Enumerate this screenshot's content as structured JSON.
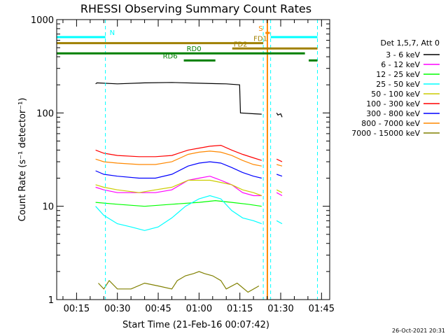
{
  "chart_data": {
    "type": "line",
    "title": "RHESSI Observing Summary Count Rates",
    "xlabel": "Start Time (21-Feb-16 00:07:42)",
    "ylabel": "Count Rate (s⁻¹ detector⁻¹)",
    "x_unit": "minutes since 00:00 UT",
    "xlim": [
      7.7,
      108
    ],
    "ylim": [
      1,
      1000
    ],
    "yscale": "log",
    "x_ticks": [
      {
        "value": 15,
        "label": "00:15"
      },
      {
        "value": 30,
        "label": "00:30"
      },
      {
        "value": 45,
        "label": "00:45"
      },
      {
        "value": 60,
        "label": "01:00"
      },
      {
        "value": 75,
        "label": "01:15"
      },
      {
        "value": 90,
        "label": "01:30"
      },
      {
        "value": 105,
        "label": "01:45"
      }
    ],
    "y_ticks": [
      {
        "value": 1,
        "label": "1"
      },
      {
        "value": 10,
        "label": "10"
      },
      {
        "value": 100,
        "label": "100"
      },
      {
        "value": 1000,
        "label": "1000"
      }
    ],
    "legend_title": "Det 1,5,7, Att 0",
    "legend_position": "right",
    "series": [
      {
        "name": "3 - 6 keV",
        "color": "#000000",
        "segments": [
          {
            "x": [
              22,
              22.5,
              30,
              40,
              50,
              60,
              66,
              70,
              74.9,
              75.2,
              80,
              83
            ],
            "y": [
              205,
              210,
              205,
              210,
              212,
              208,
              206,
              205,
              200,
              100,
              98,
              97
            ]
          },
          {
            "x": [
              88.5,
              89,
              90,
              90.5
            ],
            "y": [
              100,
              95,
              98,
              90
            ]
          }
        ]
      },
      {
        "name": "6 - 12 keV",
        "color": "#ff00ff",
        "segments": [
          {
            "x": [
              22,
              25,
              30,
              38,
              44,
              50,
              56,
              60,
              64,
              68,
              72,
              76,
              80,
              83
            ],
            "y": [
              16,
              15,
              14,
              14,
              14,
              15,
              19,
              20,
              21,
              19,
              17,
              14,
              13,
              13
            ]
          },
          {
            "x": [
              88.5,
              90.5
            ],
            "y": [
              14,
              13
            ]
          }
        ]
      },
      {
        "name": "12 - 25 keV",
        "color": "#00ff00",
        "segments": [
          {
            "x": [
              22,
              30,
              40,
              50,
              60,
              66,
              72,
              78,
              83
            ],
            "y": [
              11,
              10.5,
              10,
              10.5,
              11,
              11.5,
              11,
              10.5,
              10
            ]
          }
        ]
      },
      {
        "name": "25 - 50 keV",
        "color": "#00ffff",
        "segments": [
          {
            "x": [
              22,
              25,
              30,
              35,
              40,
              45,
              50,
              55,
              60,
              64,
              68,
              72,
              76,
              80,
              83
            ],
            "y": [
              10,
              8,
              6.5,
              6,
              5.5,
              6,
              7.5,
              10,
              12,
              13,
              12,
              9,
              7.5,
              7,
              6.5
            ]
          },
          {
            "x": [
              88.5,
              90.5
            ],
            "y": [
              7,
              6.5
            ]
          }
        ]
      },
      {
        "name": "50 - 100 keV",
        "color": "#cccc00",
        "segments": [
          {
            "x": [
              22,
              25,
              30,
              38,
              44,
              50,
              56,
              60,
              64,
              68,
              72,
              76,
              80,
              83
            ],
            "y": [
              17,
              16,
              15,
              14,
              15,
              16,
              19,
              19,
              19,
              18,
              17,
              15,
              14,
              13
            ]
          },
          {
            "x": [
              88.5,
              90.5
            ],
            "y": [
              15,
              14
            ]
          }
        ]
      },
      {
        "name": "100 - 300 keV",
        "color": "#ff0000",
        "segments": [
          {
            "x": [
              22,
              25,
              30,
              38,
              44,
              50,
              56,
              60,
              64,
              68,
              72,
              76,
              80,
              83
            ],
            "y": [
              40,
              37,
              35,
              34,
              34,
              35,
              40,
              42,
              44,
              45,
              40,
              36,
              33,
              31
            ]
          },
          {
            "x": [
              88.5,
              90.5
            ],
            "y": [
              32,
              30
            ]
          }
        ]
      },
      {
        "name": "300 - 800 keV",
        "color": "#0000ff",
        "segments": [
          {
            "x": [
              22,
              25,
              30,
              38,
              44,
              50,
              56,
              60,
              64,
              68,
              72,
              76,
              80,
              83
            ],
            "y": [
              24,
              22,
              21,
              20,
              20,
              22,
              27,
              29,
              30,
              29,
              26,
              23,
              21,
              20
            ]
          },
          {
            "x": [
              88.5,
              90.5
            ],
            "y": [
              22,
              21
            ]
          }
        ]
      },
      {
        "name": "800 - 7000 keV",
        "color": "#ff8800",
        "segments": [
          {
            "x": [
              22,
              25,
              30,
              38,
              44,
              50,
              56,
              60,
              64,
              68,
              72,
              76,
              80,
              83
            ],
            "y": [
              32,
              30,
              29,
              28,
              28,
              30,
              36,
              38,
              39,
              38,
              35,
              31,
              28,
              27
            ]
          },
          {
            "x": [
              88.5,
              90.5
            ],
            "y": [
              28,
              27
            ]
          }
        ]
      },
      {
        "name": "7000 - 15000 keV",
        "color": "#808000",
        "segments": [
          {
            "x": [
              23,
              25,
              27,
              30,
              35,
              40,
              45,
              50,
              52,
              55,
              58,
              60,
              62,
              65,
              68,
              70,
              74,
              78,
              82
            ],
            "y": [
              1.5,
              1.3,
              1.6,
              1.3,
              1.3,
              1.5,
              1.4,
              1.3,
              1.6,
              1.8,
              1.9,
              2.0,
              1.9,
              1.8,
              1.6,
              1.3,
              1.5,
              1.2,
              1.4
            ]
          }
        ]
      }
    ],
    "vertical_lines": [
      {
        "x": 25.6,
        "color": "#00ffff",
        "style": "dashed"
      },
      {
        "x": 83.6,
        "color": "#00ffff",
        "style": "dashed"
      },
      {
        "x": 85.1,
        "color": "#ff8800",
        "style": "solid"
      },
      {
        "x": 86.3,
        "color": "#00ffff",
        "style": "dashed"
      },
      {
        "x": 103.5,
        "color": "#00ffff",
        "style": "dashed"
      }
    ],
    "annotation_bars": [
      {
        "label": "N",
        "color": "#00ffff",
        "row_y": 650,
        "segments": [
          [
            7.7,
            25.6
          ],
          [
            86.3,
            103.5
          ]
        ]
      },
      {
        "label": "S",
        "color": "#ff8800",
        "row_y": 720,
        "segments": [
          [
            84.4,
            86.0
          ]
        ]
      },
      {
        "label": "FD1",
        "color": "#a08000",
        "row_y": 560,
        "segments": [
          [
            7.7,
            83.6
          ]
        ]
      },
      {
        "label": "FD2",
        "color": "#a08000",
        "row_y": 490,
        "segments": [
          [
            72.2,
            103.5
          ]
        ]
      },
      {
        "label": "RD0",
        "color": "#008000",
        "row_y": 435,
        "segments": [
          [
            7.7,
            98.9
          ]
        ]
      },
      {
        "label": "RD6",
        "color": "#008000",
        "row_y": 365,
        "segments": [
          [
            54.4,
            66.0
          ],
          [
            100.3,
            103.5
          ]
        ]
      }
    ],
    "footer_stamp": "26-Oct-2021 20:31"
  }
}
